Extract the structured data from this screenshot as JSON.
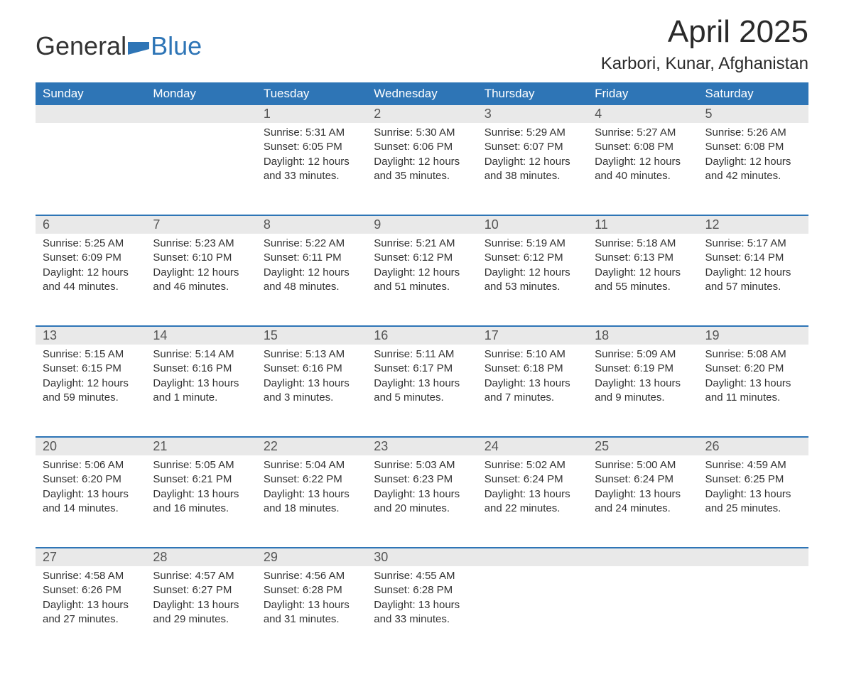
{
  "logo": {
    "text1": "General",
    "text2": "Blue",
    "color1": "#2a2a2a",
    "color2": "#2e75b6"
  },
  "title": "April 2025",
  "location": "Karbori, Kunar, Afghanistan",
  "colors": {
    "header_bg": "#2e75b6",
    "header_text": "#ffffff",
    "daynum_bg": "#e9e9e9",
    "daynum_text": "#555555",
    "body_text": "#333333",
    "row_border": "#2e75b6",
    "page_bg": "#ffffff"
  },
  "typography": {
    "title_fontsize": 44,
    "location_fontsize": 24,
    "header_fontsize": 17,
    "daynum_fontsize": 18,
    "body_fontsize": 15,
    "font_family": "Arial"
  },
  "day_headers": [
    "Sunday",
    "Monday",
    "Tuesday",
    "Wednesday",
    "Thursday",
    "Friday",
    "Saturday"
  ],
  "weeks": [
    [
      null,
      null,
      {
        "n": "1",
        "sr": "Sunrise: 5:31 AM",
        "ss": "Sunset: 6:05 PM",
        "dl": "Daylight: 12 hours and 33 minutes."
      },
      {
        "n": "2",
        "sr": "Sunrise: 5:30 AM",
        "ss": "Sunset: 6:06 PM",
        "dl": "Daylight: 12 hours and 35 minutes."
      },
      {
        "n": "3",
        "sr": "Sunrise: 5:29 AM",
        "ss": "Sunset: 6:07 PM",
        "dl": "Daylight: 12 hours and 38 minutes."
      },
      {
        "n": "4",
        "sr": "Sunrise: 5:27 AM",
        "ss": "Sunset: 6:08 PM",
        "dl": "Daylight: 12 hours and 40 minutes."
      },
      {
        "n": "5",
        "sr": "Sunrise: 5:26 AM",
        "ss": "Sunset: 6:08 PM",
        "dl": "Daylight: 12 hours and 42 minutes."
      }
    ],
    [
      {
        "n": "6",
        "sr": "Sunrise: 5:25 AM",
        "ss": "Sunset: 6:09 PM",
        "dl": "Daylight: 12 hours and 44 minutes."
      },
      {
        "n": "7",
        "sr": "Sunrise: 5:23 AM",
        "ss": "Sunset: 6:10 PM",
        "dl": "Daylight: 12 hours and 46 minutes."
      },
      {
        "n": "8",
        "sr": "Sunrise: 5:22 AM",
        "ss": "Sunset: 6:11 PM",
        "dl": "Daylight: 12 hours and 48 minutes."
      },
      {
        "n": "9",
        "sr": "Sunrise: 5:21 AM",
        "ss": "Sunset: 6:12 PM",
        "dl": "Daylight: 12 hours and 51 minutes."
      },
      {
        "n": "10",
        "sr": "Sunrise: 5:19 AM",
        "ss": "Sunset: 6:12 PM",
        "dl": "Daylight: 12 hours and 53 minutes."
      },
      {
        "n": "11",
        "sr": "Sunrise: 5:18 AM",
        "ss": "Sunset: 6:13 PM",
        "dl": "Daylight: 12 hours and 55 minutes."
      },
      {
        "n": "12",
        "sr": "Sunrise: 5:17 AM",
        "ss": "Sunset: 6:14 PM",
        "dl": "Daylight: 12 hours and 57 minutes."
      }
    ],
    [
      {
        "n": "13",
        "sr": "Sunrise: 5:15 AM",
        "ss": "Sunset: 6:15 PM",
        "dl": "Daylight: 12 hours and 59 minutes."
      },
      {
        "n": "14",
        "sr": "Sunrise: 5:14 AM",
        "ss": "Sunset: 6:16 PM",
        "dl": "Daylight: 13 hours and 1 minute."
      },
      {
        "n": "15",
        "sr": "Sunrise: 5:13 AM",
        "ss": "Sunset: 6:16 PM",
        "dl": "Daylight: 13 hours and 3 minutes."
      },
      {
        "n": "16",
        "sr": "Sunrise: 5:11 AM",
        "ss": "Sunset: 6:17 PM",
        "dl": "Daylight: 13 hours and 5 minutes."
      },
      {
        "n": "17",
        "sr": "Sunrise: 5:10 AM",
        "ss": "Sunset: 6:18 PM",
        "dl": "Daylight: 13 hours and 7 minutes."
      },
      {
        "n": "18",
        "sr": "Sunrise: 5:09 AM",
        "ss": "Sunset: 6:19 PM",
        "dl": "Daylight: 13 hours and 9 minutes."
      },
      {
        "n": "19",
        "sr": "Sunrise: 5:08 AM",
        "ss": "Sunset: 6:20 PM",
        "dl": "Daylight: 13 hours and 11 minutes."
      }
    ],
    [
      {
        "n": "20",
        "sr": "Sunrise: 5:06 AM",
        "ss": "Sunset: 6:20 PM",
        "dl": "Daylight: 13 hours and 14 minutes."
      },
      {
        "n": "21",
        "sr": "Sunrise: 5:05 AM",
        "ss": "Sunset: 6:21 PM",
        "dl": "Daylight: 13 hours and 16 minutes."
      },
      {
        "n": "22",
        "sr": "Sunrise: 5:04 AM",
        "ss": "Sunset: 6:22 PM",
        "dl": "Daylight: 13 hours and 18 minutes."
      },
      {
        "n": "23",
        "sr": "Sunrise: 5:03 AM",
        "ss": "Sunset: 6:23 PM",
        "dl": "Daylight: 13 hours and 20 minutes."
      },
      {
        "n": "24",
        "sr": "Sunrise: 5:02 AM",
        "ss": "Sunset: 6:24 PM",
        "dl": "Daylight: 13 hours and 22 minutes."
      },
      {
        "n": "25",
        "sr": "Sunrise: 5:00 AM",
        "ss": "Sunset: 6:24 PM",
        "dl": "Daylight: 13 hours and 24 minutes."
      },
      {
        "n": "26",
        "sr": "Sunrise: 4:59 AM",
        "ss": "Sunset: 6:25 PM",
        "dl": "Daylight: 13 hours and 25 minutes."
      }
    ],
    [
      {
        "n": "27",
        "sr": "Sunrise: 4:58 AM",
        "ss": "Sunset: 6:26 PM",
        "dl": "Daylight: 13 hours and 27 minutes."
      },
      {
        "n": "28",
        "sr": "Sunrise: 4:57 AM",
        "ss": "Sunset: 6:27 PM",
        "dl": "Daylight: 13 hours and 29 minutes."
      },
      {
        "n": "29",
        "sr": "Sunrise: 4:56 AM",
        "ss": "Sunset: 6:28 PM",
        "dl": "Daylight: 13 hours and 31 minutes."
      },
      {
        "n": "30",
        "sr": "Sunrise: 4:55 AM",
        "ss": "Sunset: 6:28 PM",
        "dl": "Daylight: 13 hours and 33 minutes."
      },
      null,
      null,
      null
    ]
  ]
}
